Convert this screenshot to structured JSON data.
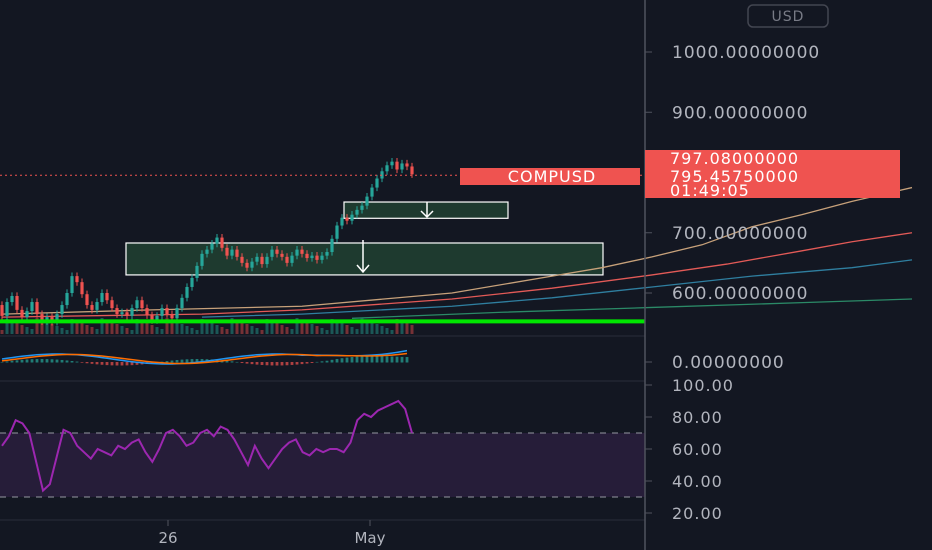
{
  "currency_button": "USD",
  "chart_data": [
    {
      "type": "candlestick",
      "symbol": "COMPUSD",
      "y_axis": {
        "ticks": [
          "1000.00000000",
          "900.00000000",
          "700.00000000",
          "600.00000000"
        ],
        "tick_values": [
          1000,
          900,
          700,
          600
        ],
        "range": [
          545,
          1045
        ]
      },
      "x_axis": {
        "ticks": [
          "26",
          "May"
        ]
      },
      "price_tags": {
        "last_price": "797.08000000",
        "symbol_price": "795.45750000",
        "countdown": "01:49:05"
      },
      "candles": [
        {
          "o": 580,
          "c": 562
        },
        {
          "o": 562,
          "c": 585
        },
        {
          "o": 585,
          "c": 595
        },
        {
          "o": 595,
          "c": 572
        },
        {
          "o": 572,
          "c": 560
        },
        {
          "o": 560,
          "c": 570
        },
        {
          "o": 570,
          "c": 585
        },
        {
          "o": 585,
          "c": 565
        },
        {
          "o": 565,
          "c": 553
        },
        {
          "o": 553,
          "c": 560
        },
        {
          "o": 560,
          "c": 552
        },
        {
          "o": 552,
          "c": 565
        },
        {
          "o": 565,
          "c": 580
        },
        {
          "o": 580,
          "c": 600
        },
        {
          "o": 600,
          "c": 628
        },
        {
          "o": 628,
          "c": 618
        },
        {
          "o": 618,
          "c": 598
        },
        {
          "o": 598,
          "c": 580
        },
        {
          "o": 580,
          "c": 572
        },
        {
          "o": 572,
          "c": 585
        },
        {
          "o": 585,
          "c": 600
        },
        {
          "o": 600,
          "c": 588
        },
        {
          "o": 588,
          "c": 575
        },
        {
          "o": 575,
          "c": 565
        },
        {
          "o": 565,
          "c": 568
        },
        {
          "o": 568,
          "c": 562
        },
        {
          "o": 562,
          "c": 575
        },
        {
          "o": 575,
          "c": 588
        },
        {
          "o": 588,
          "c": 575
        },
        {
          "o": 575,
          "c": 563
        },
        {
          "o": 563,
          "c": 555
        },
        {
          "o": 555,
          "c": 562
        },
        {
          "o": 562,
          "c": 575
        },
        {
          "o": 575,
          "c": 565
        },
        {
          "o": 565,
          "c": 558
        },
        {
          "o": 558,
          "c": 575
        },
        {
          "o": 575,
          "c": 592
        },
        {
          "o": 592,
          "c": 610
        },
        {
          "o": 610,
          "c": 625
        },
        {
          "o": 625,
          "c": 645
        },
        {
          "o": 645,
          "c": 665
        },
        {
          "o": 665,
          "c": 672
        },
        {
          "o": 672,
          "c": 682
        },
        {
          "o": 682,
          "c": 692
        },
        {
          "o": 692,
          "c": 675
        },
        {
          "o": 675,
          "c": 662
        },
        {
          "o": 662,
          "c": 672
        },
        {
          "o": 672,
          "c": 660
        },
        {
          "o": 660,
          "c": 650
        },
        {
          "o": 650,
          "c": 642
        },
        {
          "o": 642,
          "c": 652
        },
        {
          "o": 652,
          "c": 660
        },
        {
          "o": 660,
          "c": 648
        },
        {
          "o": 648,
          "c": 660
        },
        {
          "o": 660,
          "c": 672
        },
        {
          "o": 672,
          "c": 665
        },
        {
          "o": 665,
          "c": 660
        },
        {
          "o": 660,
          "c": 650
        },
        {
          "o": 650,
          "c": 662
        },
        {
          "o": 662,
          "c": 672
        },
        {
          "o": 672,
          "c": 665
        },
        {
          "o": 665,
          "c": 658
        },
        {
          "o": 658,
          "c": 662
        },
        {
          "o": 662,
          "c": 655
        },
        {
          "o": 655,
          "c": 662
        },
        {
          "o": 662,
          "c": 668
        },
        {
          "o": 668,
          "c": 690
        },
        {
          "o": 690,
          "c": 712
        },
        {
          "o": 712,
          "c": 725
        },
        {
          "o": 725,
          "c": 720
        },
        {
          "o": 720,
          "c": 730
        },
        {
          "o": 730,
          "c": 738
        },
        {
          "o": 738,
          "c": 745
        },
        {
          "o": 745,
          "c": 760
        },
        {
          "o": 760,
          "c": 775
        },
        {
          "o": 775,
          "c": 790
        },
        {
          "o": 790,
          "c": 802
        },
        {
          "o": 802,
          "c": 812
        },
        {
          "o": 812,
          "c": 818
        },
        {
          "o": 818,
          "c": 805
        },
        {
          "o": 805,
          "c": 815
        },
        {
          "o": 815,
          "c": 810
        },
        {
          "o": 810,
          "c": 797
        }
      ],
      "moving_averages": [
        {
          "color": "#c7a17a",
          "values": [
            [
              0,
              565
            ],
            [
              30,
              572
            ],
            [
              60,
              578
            ],
            [
              90,
              600
            ],
            [
              110,
              628
            ],
            [
              120,
              642
            ],
            [
              130,
              660
            ],
            [
              140,
              680
            ],
            [
              150,
              710
            ],
            [
              160,
              730
            ],
            [
              170,
              752
            ],
            [
              182,
              775
            ]
          ]
        },
        {
          "color": "#e35a57",
          "values": [
            [
              0,
              560
            ],
            [
              40,
              565
            ],
            [
              60,
              572
            ],
            [
              90,
              590
            ],
            [
              110,
              608
            ],
            [
              130,
              630
            ],
            [
              145,
              648
            ],
            [
              160,
              670
            ],
            [
              170,
              685
            ],
            [
              182,
              700
            ]
          ]
        },
        {
          "color": "#2f7fa0",
          "values": [
            [
              40,
              560
            ],
            [
              60,
              565
            ],
            [
              90,
              578
            ],
            [
              110,
              592
            ],
            [
              130,
              610
            ],
            [
              150,
              628
            ],
            [
              170,
              642
            ],
            [
              182,
              655
            ]
          ]
        },
        {
          "color": "#2b8a67",
          "values": [
            [
              70,
              558
            ],
            [
              100,
              568
            ],
            [
              130,
              576
            ],
            [
              160,
              584
            ],
            [
              182,
              590
            ]
          ]
        }
      ],
      "horizontal_line": {
        "price": 553,
        "color": "#00e600"
      },
      "zones": [
        {
          "from": 630,
          "to": 683,
          "color": "#1e3a2f"
        },
        {
          "from": 724,
          "to": 751,
          "color": "#1e3a2f"
        }
      ]
    },
    {
      "type": "line",
      "title": "MACD",
      "y_axis": {
        "ticks": [
          "0.00000000"
        ],
        "tick_values": [
          0
        ]
      }
    },
    {
      "type": "line",
      "title": "RSI",
      "y_axis": {
        "ticks": [
          "100.00",
          "80.00",
          "60.00",
          "40.00",
          "20.00"
        ],
        "tick_values": [
          100,
          80,
          60,
          40,
          20
        ]
      },
      "band": [
        30,
        70
      ],
      "values": [
        62,
        68,
        78,
        76,
        70,
        52,
        34,
        38,
        55,
        72,
        70,
        62,
        58,
        54,
        60,
        58,
        56,
        62,
        60,
        64,
        66,
        58,
        52,
        60,
        70,
        72,
        68,
        62,
        64,
        70,
        72,
        68,
        74,
        72,
        66,
        58,
        50,
        62,
        54,
        48,
        54,
        60,
        64,
        66,
        58,
        56,
        60,
        58,
        60,
        60,
        58,
        64,
        78,
        82,
        80,
        84,
        86,
        88,
        90,
        85,
        70
      ]
    }
  ]
}
